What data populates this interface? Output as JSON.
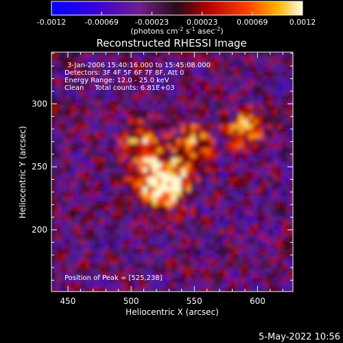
{
  "chart_data": {
    "type": "heatmap",
    "title": "Reconstructed RHESSI Image",
    "xlabel": "Heliocentric X (arcsec)",
    "ylabel": "Heliocentric Y (arcsec)",
    "xlim": [
      437,
      628
    ],
    "ylim": [
      151,
      341
    ],
    "x_ticks": [
      450,
      500,
      550,
      600
    ],
    "y_ticks": [
      200,
      250,
      300
    ],
    "colorbar": {
      "ticks": [
        "-0.0012",
        "-0.00069",
        "-0.00023",
        "0.00023",
        "0.00069",
        "0.0012"
      ],
      "range": [
        -0.0012,
        0.0012
      ],
      "units_text": "(photons cm",
      "units_exp1": "-2",
      "units_mid": " s",
      "units_exp2": "-1",
      "units_mid2": " asec",
      "units_exp3": "-2",
      "units_end": ")"
    },
    "annotations": [
      "3-Jan-2006 15:40:16.000 to 15:45:08.000",
      "Detectors: 3F 4F 5F 6F 7F 8F, Att 0",
      "Energy Range: 12.0 - 25.0 keV",
      "Clean     Total counts: 6.81E+03"
    ],
    "peak_label": "Position of Peak = [525,238]",
    "peak": [
      525,
      238
    ],
    "secondary_sources": [
      [
        590,
        280
      ],
      [
        508,
        270
      ],
      [
        550,
        270
      ]
    ],
    "footer_timestamp": "5-May-2022 10:56"
  }
}
